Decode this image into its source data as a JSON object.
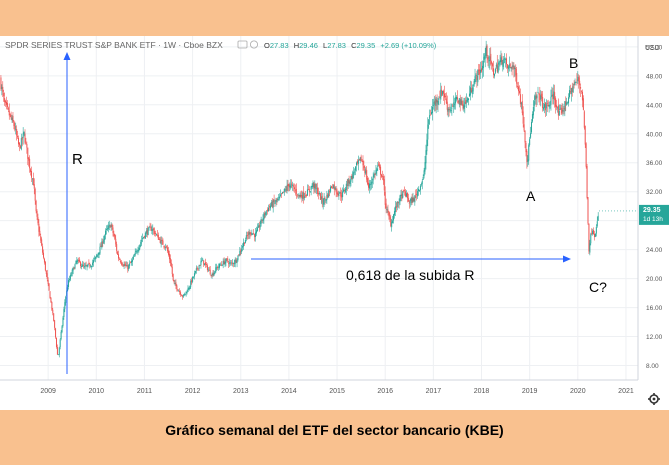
{
  "header": {
    "symbol": "SPDR SERIES TRUST S&P BANK ETF · 1W · Cboe BZX",
    "ohlc": {
      "o_label": "O",
      "o_value": "27.83",
      "h_label": "H",
      "h_value": "29.46",
      "l_label": "L",
      "l_value": "27.83",
      "c_label": "C",
      "c_value": "29.35",
      "change": "+2.69 (+10.09%)"
    }
  },
  "price_axis": {
    "currency": "USD"
  },
  "last_price": {
    "value": "29.35",
    "countdown": "1d 13h"
  },
  "annotations": {
    "R": "R",
    "A": "A",
    "B": "B",
    "C": "C?",
    "fib": "0,618 de la subida R"
  },
  "caption": "Gráfico semanal del ETF del sector bancario (KBE)",
  "colors": {
    "up": "#26a69a",
    "down": "#ef5350",
    "annotation_line": "#2962ff",
    "background_band": "#f9c18f"
  },
  "chart_data": {
    "type": "candlestick",
    "interval": "1W",
    "x_unit": "year",
    "xlim": [
      2008.0,
      2021.25
    ],
    "ylim": [
      6.0,
      53.5
    ],
    "x_ticks": [
      2009,
      2010,
      2011,
      2012,
      2013,
      2014,
      2015,
      2016,
      2017,
      2018,
      2019,
      2020,
      2021
    ],
    "y_ticks": [
      8.0,
      12.0,
      16.0,
      20.0,
      24.0,
      28.0,
      32.0,
      36.0,
      40.0,
      44.0,
      48.0,
      52.0
    ],
    "grid": true,
    "price_path": [
      [
        2008.0,
        47.5
      ],
      [
        2008.1,
        44.0
      ],
      [
        2008.2,
        42.5
      ],
      [
        2008.3,
        41.0
      ],
      [
        2008.4,
        38.0
      ],
      [
        2008.5,
        40.0
      ],
      [
        2008.6,
        36.0
      ],
      [
        2008.7,
        33.0
      ],
      [
        2008.75,
        29.0
      ],
      [
        2008.85,
        25.0
      ],
      [
        2008.95,
        21.0
      ],
      [
        2009.05,
        17.0
      ],
      [
        2009.12,
        14.0
      ],
      [
        2009.2,
        9.0
      ],
      [
        2009.28,
        13.0
      ],
      [
        2009.35,
        17.0
      ],
      [
        2009.42,
        19.5
      ],
      [
        2009.5,
        21.0
      ],
      [
        2009.6,
        22.5
      ],
      [
        2009.75,
        21.5
      ],
      [
        2009.9,
        22.0
      ],
      [
        2010.0,
        23.0
      ],
      [
        2010.1,
        24.5
      ],
      [
        2010.2,
        26.5
      ],
      [
        2010.3,
        27.5
      ],
      [
        2010.38,
        25.5
      ],
      [
        2010.45,
        23.0
      ],
      [
        2010.55,
        22.0
      ],
      [
        2010.65,
        21.5
      ],
      [
        2010.75,
        22.5
      ],
      [
        2010.85,
        24.0
      ],
      [
        2010.95,
        25.5
      ],
      [
        2011.05,
        26.5
      ],
      [
        2011.15,
        27.0
      ],
      [
        2011.25,
        26.0
      ],
      [
        2011.35,
        25.0
      ],
      [
        2011.45,
        24.5
      ],
      [
        2011.55,
        22.0
      ],
      [
        2011.6,
        19.5
      ],
      [
        2011.7,
        18.5
      ],
      [
        2011.8,
        17.5
      ],
      [
        2011.9,
        18.5
      ],
      [
        2012.0,
        20.0
      ],
      [
        2012.1,
        21.5
      ],
      [
        2012.2,
        22.5
      ],
      [
        2012.3,
        21.5
      ],
      [
        2012.4,
        20.5
      ],
      [
        2012.5,
        21.5
      ],
      [
        2012.6,
        22.0
      ],
      [
        2012.7,
        22.5
      ],
      [
        2012.8,
        22.0
      ],
      [
        2012.9,
        22.5
      ],
      [
        2013.0,
        24.0
      ],
      [
        2013.1,
        25.5
      ],
      [
        2013.2,
        26.5
      ],
      [
        2013.3,
        26.0
      ],
      [
        2013.4,
        27.5
      ],
      [
        2013.5,
        29.0
      ],
      [
        2013.6,
        30.0
      ],
      [
        2013.7,
        30.5
      ],
      [
        2013.8,
        31.0
      ],
      [
        2013.9,
        32.0
      ],
      [
        2014.0,
        33.0
      ],
      [
        2014.1,
        32.5
      ],
      [
        2014.2,
        31.5
      ],
      [
        2014.3,
        31.5
      ],
      [
        2014.4,
        32.0
      ],
      [
        2014.5,
        33.0
      ],
      [
        2014.6,
        32.0
      ],
      [
        2014.7,
        30.5
      ],
      [
        2014.8,
        31.5
      ],
      [
        2014.9,
        33.0
      ],
      [
        2015.0,
        32.0
      ],
      [
        2015.1,
        31.5
      ],
      [
        2015.2,
        33.0
      ],
      [
        2015.3,
        34.0
      ],
      [
        2015.4,
        35.5
      ],
      [
        2015.5,
        36.5
      ],
      [
        2015.6,
        34.5
      ],
      [
        2015.65,
        32.5
      ],
      [
        2015.75,
        34.0
      ],
      [
        2015.85,
        35.5
      ],
      [
        2015.95,
        34.0
      ],
      [
        2016.0,
        30.5
      ],
      [
        2016.05,
        29.0
      ],
      [
        2016.12,
        27.5
      ],
      [
        2016.2,
        29.5
      ],
      [
        2016.3,
        31.0
      ],
      [
        2016.4,
        32.0
      ],
      [
        2016.5,
        30.5
      ],
      [
        2016.6,
        31.0
      ],
      [
        2016.7,
        32.5
      ],
      [
        2016.8,
        34.0
      ],
      [
        2016.85,
        38.0
      ],
      [
        2016.9,
        42.0
      ],
      [
        2017.0,
        44.0
      ],
      [
        2017.1,
        45.0
      ],
      [
        2017.2,
        46.0
      ],
      [
        2017.3,
        43.5
      ],
      [
        2017.4,
        43.5
      ],
      [
        2017.5,
        45.0
      ],
      [
        2017.6,
        44.0
      ],
      [
        2017.7,
        44.5
      ],
      [
        2017.8,
        46.5
      ],
      [
        2017.9,
        48.0
      ],
      [
        2018.0,
        49.0
      ],
      [
        2018.1,
        51.5
      ],
      [
        2018.15,
        50.5
      ],
      [
        2018.25,
        48.5
      ],
      [
        2018.35,
        49.5
      ],
      [
        2018.45,
        50.5
      ],
      [
        2018.55,
        49.0
      ],
      [
        2018.65,
        49.5
      ],
      [
        2018.75,
        47.0
      ],
      [
        2018.85,
        43.0
      ],
      [
        2018.95,
        36.0
      ],
      [
        2019.02,
        40.5
      ],
      [
        2019.1,
        44.5
      ],
      [
        2019.2,
        45.5
      ],
      [
        2019.3,
        43.5
      ],
      [
        2019.4,
        44.0
      ],
      [
        2019.5,
        45.5
      ],
      [
        2019.6,
        42.5
      ],
      [
        2019.7,
        43.5
      ],
      [
        2019.8,
        45.0
      ],
      [
        2019.9,
        46.5
      ],
      [
        2020.0,
        47.5
      ],
      [
        2020.08,
        46.0
      ],
      [
        2020.12,
        43.0
      ],
      [
        2020.17,
        36.0
      ],
      [
        2020.2,
        30.0
      ],
      [
        2020.23,
        24.0
      ],
      [
        2020.26,
        25.5
      ],
      [
        2020.3,
        27.0
      ],
      [
        2020.35,
        26.0
      ],
      [
        2020.4,
        27.5
      ],
      [
        2020.44,
        29.35
      ]
    ]
  }
}
